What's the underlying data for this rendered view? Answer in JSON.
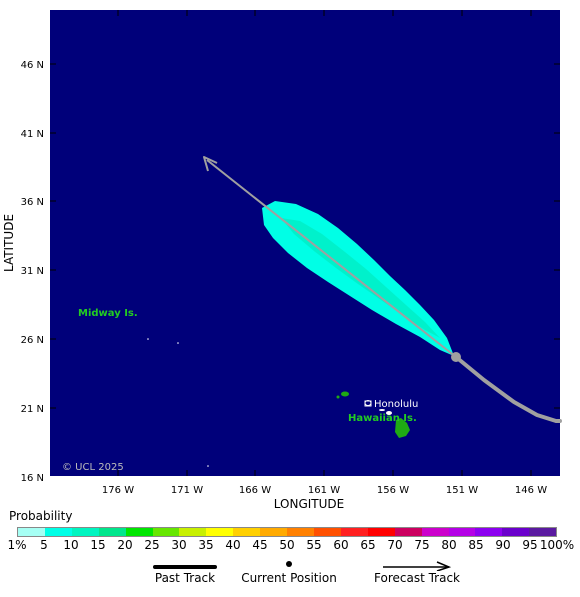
{
  "map": {
    "axes": {
      "xlabel": "LONGITUDE",
      "ylabel": "LATITUDE",
      "x_ticks": [
        "176 W",
        "171 W",
        "166 W",
        "161 W",
        "156 W",
        "151 W",
        "146 W"
      ],
      "y_ticks": [
        "46 N",
        "41 N",
        "36 N",
        "31 N",
        "26 N",
        "21 N",
        "16 N"
      ]
    },
    "labels": {
      "midway": "Midway Is.",
      "honolulu": "Honolulu",
      "hawaiian": "Hawaiian Is.",
      "copyright": "© UCL 2025"
    },
    "colors": {
      "ocean": "#00007a",
      "land": "#1faa14",
      "land_label": "#22cc22",
      "track": "#a0a0a0",
      "probability_cone": "#00ffe6",
      "probability_core": "#00e6b4"
    },
    "past_track_latlon": [
      [
        24.7,
        -151.1
      ],
      [
        23.0,
        -148.9
      ],
      [
        21.2,
        -146.6
      ],
      [
        20.0,
        -144.9
      ],
      [
        19.5,
        -143.6
      ]
    ],
    "current_position": {
      "lat": 24.7,
      "lon": -151.1
    },
    "forecast_track_latlon": [
      [
        24.7,
        -151.1
      ],
      [
        30.0,
        -158.8
      ],
      [
        34.5,
        -165.2
      ],
      [
        39.0,
        -171.8
      ]
    ]
  },
  "legend": {
    "probability_title": "Probability",
    "probability_labels": [
      "1%",
      "5",
      "10",
      "15",
      "20",
      "25",
      "30",
      "35",
      "40",
      "45",
      "50",
      "55",
      "60",
      "65",
      "70",
      "75",
      "80",
      "85",
      "90",
      "95",
      "100%"
    ],
    "probability_colors": [
      "#a6fff4",
      "#00ffe6",
      "#00f5c0",
      "#00e68c",
      "#00e600",
      "#66e600",
      "#c8f000",
      "#ffff00",
      "#ffd000",
      "#ffaa00",
      "#ff8000",
      "#ff5000",
      "#ff2020",
      "#ff0000",
      "#cc0060",
      "#cc00cc",
      "#b400e6",
      "#8c00f0",
      "#6a00cc",
      "#5a1aa0"
    ],
    "past_track_label": "Past Track",
    "current_position_label": "Current Position",
    "forecast_track_label": "Forecast Track"
  }
}
